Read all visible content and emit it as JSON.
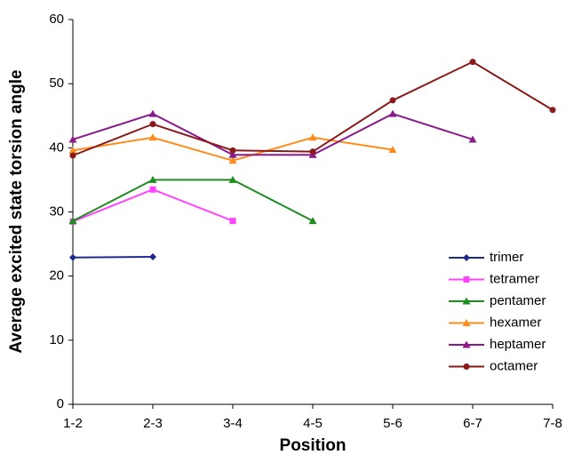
{
  "chart_data": {
    "type": "line",
    "x_label": "Position",
    "y_label": "Average excited state torsion angle",
    "categories": [
      "1-2",
      "2-3",
      "3-4",
      "4-5",
      "5-6",
      "6-7",
      "7-8"
    ],
    "ylim": [
      0,
      60
    ],
    "yticks": [
      0,
      10,
      20,
      30,
      40,
      50,
      60
    ],
    "grid": false,
    "legend": "lower-right",
    "series": [
      {
        "name": "trimer",
        "color": "#1f2a8c",
        "marker": "diamond",
        "values": [
          22.9,
          23.0,
          null,
          null,
          null,
          null,
          null
        ]
      },
      {
        "name": "tetramer",
        "color": "#ff44ff",
        "marker": "square",
        "values": [
          28.5,
          33.5,
          28.6,
          null,
          null,
          null,
          null
        ]
      },
      {
        "name": "pentamer",
        "color": "#1e8c1e",
        "marker": "triangle",
        "values": [
          28.6,
          35.0,
          35.0,
          28.6,
          null,
          null,
          null
        ]
      },
      {
        "name": "hexamer",
        "color": "#ff8c1a",
        "marker": "triangle",
        "values": [
          39.6,
          41.6,
          38.0,
          41.6,
          39.7,
          null,
          null
        ]
      },
      {
        "name": "heptamer",
        "color": "#8b1a8b",
        "marker": "triangle",
        "values": [
          41.3,
          45.3,
          38.9,
          38.9,
          45.3,
          41.3,
          null
        ]
      },
      {
        "name": "octamer",
        "color": "#8b1a1a",
        "marker": "circle",
        "values": [
          38.8,
          43.7,
          39.6,
          39.4,
          47.4,
          53.4,
          45.9
        ]
      }
    ]
  }
}
